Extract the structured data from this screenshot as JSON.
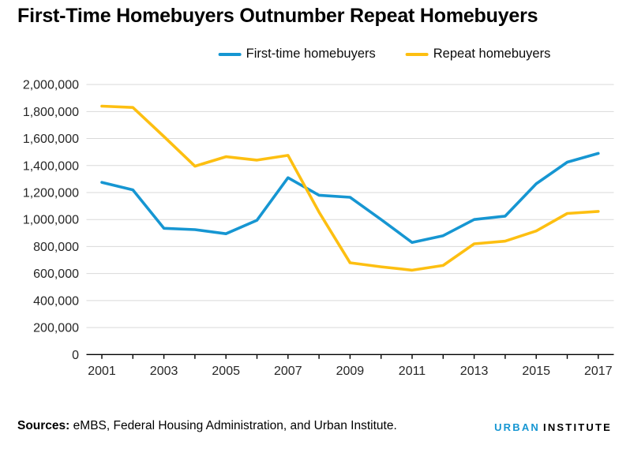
{
  "colors": {
    "first_time_blue": "#1696d2",
    "repeat_yellow": "#fdbf11",
    "gridline": "#d9d9d9",
    "axis": "#000000",
    "label_text": "#262626"
  },
  "footer": {
    "sources_label": "Sources:",
    "sources_text": "eMBS, Federal Housing Administration, and Urban Institute.",
    "logo_urban": "URBAN",
    "logo_institute": "INSTITUTE"
  },
  "chart_data": {
    "type": "line",
    "title": "First-Time Homebuyers Outnumber Repeat Homebuyers",
    "x": [
      2001,
      2002,
      2003,
      2004,
      2005,
      2006,
      2007,
      2008,
      2009,
      2010,
      2011,
      2012,
      2013,
      2014,
      2015,
      2016,
      2017
    ],
    "xtick_labels": [
      "2001",
      "2003",
      "2005",
      "2007",
      "2009",
      "2011",
      "2013",
      "2015",
      "2017"
    ],
    "ylim": [
      0,
      2000000
    ],
    "ytick_step": 200000,
    "grid": "horizontal-only",
    "legend_position": "top-center",
    "series": [
      {
        "name": "First-time homebuyers",
        "color": "#1696d2",
        "values": [
          1275000,
          1220000,
          935000,
          925000,
          895000,
          995000,
          1310000,
          1180000,
          1165000,
          1000000,
          830000,
          880000,
          1000000,
          1025000,
          1265000,
          1425000,
          1490000
        ]
      },
      {
        "name": "Repeat homebuyers",
        "color": "#fdbf11",
        "values": [
          1840000,
          1830000,
          1615000,
          1395000,
          1465000,
          1440000,
          1475000,
          1055000,
          680000,
          650000,
          625000,
          660000,
          820000,
          840000,
          915000,
          1045000,
          1060000
        ]
      }
    ]
  }
}
